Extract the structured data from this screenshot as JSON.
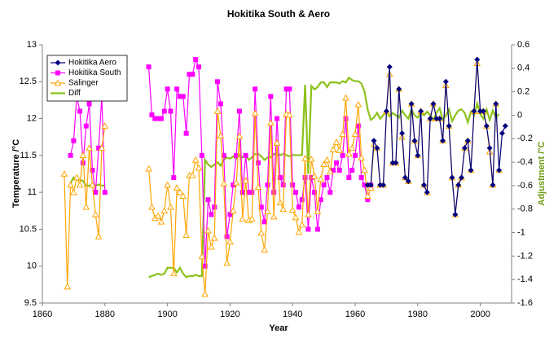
{
  "chart_data": {
    "type": "line",
    "title": "Hokitika South & Aero",
    "xlabel": "Year",
    "ylabel": "Temperature /°C",
    "y2label": "Adjustment /°C",
    "xlim": [
      1860,
      2010
    ],
    "xticks": [
      1860,
      1880,
      1900,
      1920,
      1940,
      1960,
      1980,
      2000
    ],
    "ylim": [
      9.5,
      13
    ],
    "yticks": [
      9.5,
      10,
      10.5,
      11,
      11.5,
      12,
      12.5,
      13
    ],
    "y2lim": [
      -1.6,
      0.6
    ],
    "y2ticks": [
      -1.6,
      -1.4,
      -1.2,
      -1,
      -0.8,
      -0.6,
      -0.4,
      -0.2,
      0,
      0.2,
      0.4,
      0.6
    ],
    "legend": "upper left",
    "series": [
      {
        "name": "Hokitika Aero",
        "color": "#000080",
        "marker": "diamond",
        "x": [
          1964,
          1965,
          1966,
          1967,
          1968,
          1969,
          1970,
          1971,
          1972,
          1973,
          1974,
          1975,
          1976,
          1977,
          1978,
          1979,
          1980,
          1981,
          1982,
          1983,
          1984,
          1985,
          1986,
          1987,
          1988,
          1989,
          1990,
          1991,
          1992,
          1993,
          1994,
          1995,
          1996,
          1997,
          1998,
          1999,
          2000,
          2001,
          2002,
          2003,
          2004,
          2005,
          2006,
          2007,
          2008
        ],
        "values": [
          11.1,
          11.1,
          11.7,
          11.6,
          11.1,
          11.1,
          12.1,
          12.7,
          11.4,
          11.4,
          12.4,
          11.8,
          11.2,
          11.15,
          12.2,
          11.7,
          11.5,
          12.1,
          11.1,
          11.0,
          12.0,
          12.2,
          12.0,
          12.0,
          11.7,
          12.5,
          11.9,
          11.2,
          10.7,
          11.1,
          11.2,
          11.6,
          11.7,
          11.3,
          12.1,
          12.8,
          12.1,
          12.1,
          11.9,
          11.6,
          11.1,
          12.2,
          11.3,
          11.8,
          11.9
        ]
      },
      {
        "name": "Hokitika South",
        "color": "#ff00ff",
        "marker": "square",
        "x": [
          1869,
          1870,
          1871,
          1872,
          1873,
          1874,
          1875,
          1876,
          1877,
          1878,
          1879,
          1880,
          1887,
          1894,
          1895,
          1896,
          1897,
          1898,
          1899,
          1900,
          1901,
          1902,
          1903,
          1904,
          1905,
          1906,
          1907,
          1908,
          1909,
          1910,
          1911,
          1912,
          1913,
          1914,
          1915,
          1916,
          1917,
          1918,
          1919,
          1920,
          1921,
          1922,
          1923,
          1924,
          1925,
          1926,
          1927,
          1928,
          1929,
          1930,
          1931,
          1932,
          1933,
          1934,
          1935,
          1936,
          1937,
          1938,
          1939,
          1940,
          1941,
          1942,
          1943,
          1944,
          1945,
          1946,
          1947,
          1948,
          1949,
          1950,
          1951,
          1952,
          1953,
          1954,
          1955,
          1956,
          1957,
          1958,
          1959,
          1960,
          1961,
          1962,
          1963,
          1964,
          1965
        ],
        "values": [
          11.5,
          11.7,
          12.3,
          12.1,
          11.4,
          11.9,
          12.2,
          11.3,
          11.0,
          11.6,
          12.3,
          11.0,
          null,
          12.7,
          12.05,
          12.0,
          12.0,
          12.0,
          12.1,
          12.4,
          12.1,
          11.2,
          12.4,
          12.3,
          12.3,
          11.8,
          12.6,
          12.6,
          12.8,
          12.7,
          11.5,
          10.0,
          10.9,
          10.7,
          10.8,
          12.5,
          12.2,
          11.5,
          10.4,
          10.7,
          11.1,
          11.5,
          12.1,
          11.0,
          11.5,
          11.0,
          11.0,
          12.4,
          11.4,
          10.8,
          10.6,
          11.1,
          12.3,
          11.0,
          12.0,
          11.2,
          11.1,
          12.4,
          12.4,
          11.1,
          11.0,
          10.8,
          10.9,
          11.2,
          10.5,
          11.2,
          11.0,
          10.5,
          10.9,
          11.1,
          11.2,
          11.0,
          11.3,
          11.4,
          11.3,
          11.5,
          12.0,
          11.2,
          11.3,
          11.5,
          11.9,
          11.2,
          11.1,
          10.9,
          11.1
        ]
      },
      {
        "name": "Salinger",
        "color": "#ffa500",
        "marker": "triangle",
        "x": [
          1867,
          1868,
          1869,
          1870,
          1871,
          1872,
          1873,
          1874,
          1875,
          1876,
          1877,
          1878,
          1879,
          1880,
          1887,
          1894,
          1895,
          1896,
          1897,
          1898,
          1899,
          1900,
          1901,
          1902,
          1903,
          1904,
          1905,
          1906,
          1907,
          1908,
          1909,
          1910,
          1911,
          1912,
          1913,
          1914,
          1915,
          1916,
          1917,
          1918,
          1919,
          1920,
          1921,
          1922,
          1923,
          1924,
          1925,
          1926,
          1927,
          1928,
          1929,
          1930,
          1931,
          1932,
          1933,
          1934,
          1935,
          1936,
          1937,
          1938,
          1939,
          1940,
          1941,
          1942,
          1943,
          1944,
          1945,
          1946,
          1947,
          1948,
          1949,
          1950,
          1951,
          1952,
          1953,
          1954,
          1955,
          1956,
          1957,
          1958,
          1959,
          1960,
          1961,
          1962,
          1963,
          1964,
          1965,
          1966,
          1967,
          1968,
          1969,
          1970,
          1971,
          1972,
          1973,
          1974,
          1975,
          1976,
          1977,
          1978,
          1979,
          1980,
          1981,
          1982,
          1983,
          1984,
          1985,
          1986,
          1987,
          1988,
          1989,
          1990,
          1991,
          1992,
          1993,
          1994,
          1995,
          1996,
          1997,
          1998,
          1999,
          2000,
          2001,
          2002,
          2003,
          2004,
          2005,
          2006
        ],
        "values": [
          11.25,
          9.72,
          11.1,
          11.0,
          11.2,
          11.1,
          11.5,
          10.8,
          11.6,
          11.1,
          10.7,
          10.4,
          11.6,
          11.9,
          null,
          11.32,
          10.8,
          10.65,
          10.68,
          10.6,
          10.75,
          11.1,
          10.8,
          9.9,
          11.06,
          11.0,
          10.95,
          10.42,
          11.23,
          11.23,
          11.44,
          11.33,
          10.13,
          9.62,
          10.48,
          10.26,
          10.38,
          12.1,
          11.77,
          11.12,
          10.04,
          10.33,
          10.75,
          11.13,
          11.76,
          10.64,
          11.16,
          10.62,
          10.64,
          12.07,
          11.07,
          10.45,
          10.22,
          10.74,
          11.94,
          10.67,
          11.67,
          10.86,
          10.77,
          12.06,
          12.05,
          10.76,
          10.66,
          10.46,
          10.56,
          11.46,
          10.7,
          11.45,
          11.22,
          10.74,
          11.18,
          11.38,
          11.44,
          11.28,
          11.58,
          11.68,
          11.57,
          11.79,
          12.28,
          11.52,
          11.6,
          11.79,
          12.19,
          11.47,
          11.3,
          10.95,
          11.06,
          11.65,
          11.6,
          11.1,
          11.1,
          12.1,
          12.6,
          11.4,
          11.4,
          12.4,
          11.75,
          11.2,
          11.15,
          12.2,
          11.7,
          11.5,
          12.1,
          11.1,
          11.0,
          12.0,
          12.2,
          12.0,
          12.0,
          11.7,
          12.45,
          11.9,
          11.2,
          10.7,
          11.1,
          11.2,
          11.6,
          11.7,
          11.3,
          12.1,
          12.75,
          12.1,
          12.1,
          11.9,
          11.55,
          11.1,
          12.2,
          11.3
        ]
      },
      {
        "name": "Diff",
        "color": "#8cc21b",
        "axis": "y2",
        "x": [
          1869,
          1870,
          1871,
          1872,
          1873,
          1874,
          1875,
          1876,
          1877,
          1878,
          1879,
          1880,
          1887,
          1894,
          1895,
          1896,
          1897,
          1898,
          1899,
          1900,
          1901,
          1902,
          1903,
          1904,
          1905,
          1906,
          1907,
          1908,
          1909,
          1910,
          1911,
          1912,
          1913,
          1914,
          1915,
          1916,
          1917,
          1918,
          1919,
          1920,
          1921,
          1922,
          1923,
          1924,
          1925,
          1926,
          1927,
          1928,
          1929,
          1930,
          1931,
          1932,
          1933,
          1934,
          1935,
          1936,
          1937,
          1938,
          1939,
          1940,
          1941,
          1942,
          1943,
          1944,
          1945,
          1946,
          1947,
          1948,
          1949,
          1950,
          1951,
          1952,
          1953,
          1954,
          1955,
          1956,
          1957,
          1958,
          1959,
          1960,
          1961,
          1962,
          1963,
          1964,
          1965,
          1966,
          1967,
          1968,
          1969,
          1970,
          1971,
          1972,
          1973,
          1974,
          1975,
          1976,
          1977,
          1978,
          1979,
          1980,
          1981,
          1982,
          1983,
          1984,
          1985,
          1986,
          1987,
          1988,
          1989,
          1990,
          1991,
          1992,
          1993,
          1994,
          1995,
          1996,
          1997,
          1998,
          1999,
          2000,
          2001,
          2002,
          2003,
          2004,
          2005,
          2006
        ],
        "values": [
          -0.58,
          -0.53,
          -0.55,
          -0.55,
          -0.56,
          -0.6,
          -0.6,
          -0.6,
          -0.6,
          -0.59,
          -0.6,
          -0.6,
          null,
          -1.38,
          -1.37,
          -1.36,
          -1.35,
          -1.36,
          -1.35,
          -1.3,
          -1.3,
          -1.3,
          -1.34,
          -1.3,
          -1.35,
          -1.38,
          -1.37,
          -1.37,
          -1.36,
          -1.37,
          -1.37,
          -0.38,
          -0.42,
          -0.44,
          -0.42,
          -0.4,
          -0.43,
          -0.38,
          -0.36,
          -0.37,
          -0.35,
          -0.37,
          -0.34,
          -0.36,
          -0.34,
          -0.38,
          -0.36,
          -0.33,
          -0.33,
          -0.35,
          -0.38,
          -0.36,
          -0.36,
          -0.33,
          -0.33,
          -0.34,
          -0.33,
          -0.34,
          -0.35,
          -0.34,
          -0.34,
          -0.34,
          -0.34,
          0.26,
          -0.5,
          0.25,
          0.22,
          0.24,
          0.28,
          0.28,
          0.24,
          0.28,
          0.28,
          0.28,
          0.27,
          0.29,
          0.28,
          0.32,
          0.3,
          0.29,
          0.29,
          0.27,
          0.2,
          0.05,
          -0.04,
          -0.02,
          0.02,
          -0.03,
          0.0,
          0.03,
          -0.01,
          0.02,
          0.0,
          -0.02,
          0.04,
          0.0,
          -0.03,
          0.05,
          0.0,
          -0.02,
          0.02,
          0.0,
          0.03,
          0.0,
          -0.04,
          0.02,
          0.06,
          -0.04,
          0.0,
          0.05,
          -0.05,
          0.0,
          0.04,
          0.05,
          0.02,
          -0.06,
          0.03,
          0.0,
          0.1,
          0.01,
          -0.03,
          0.05,
          -0.04,
          0.04,
          -0.02,
          0.01
        ]
      }
    ]
  }
}
